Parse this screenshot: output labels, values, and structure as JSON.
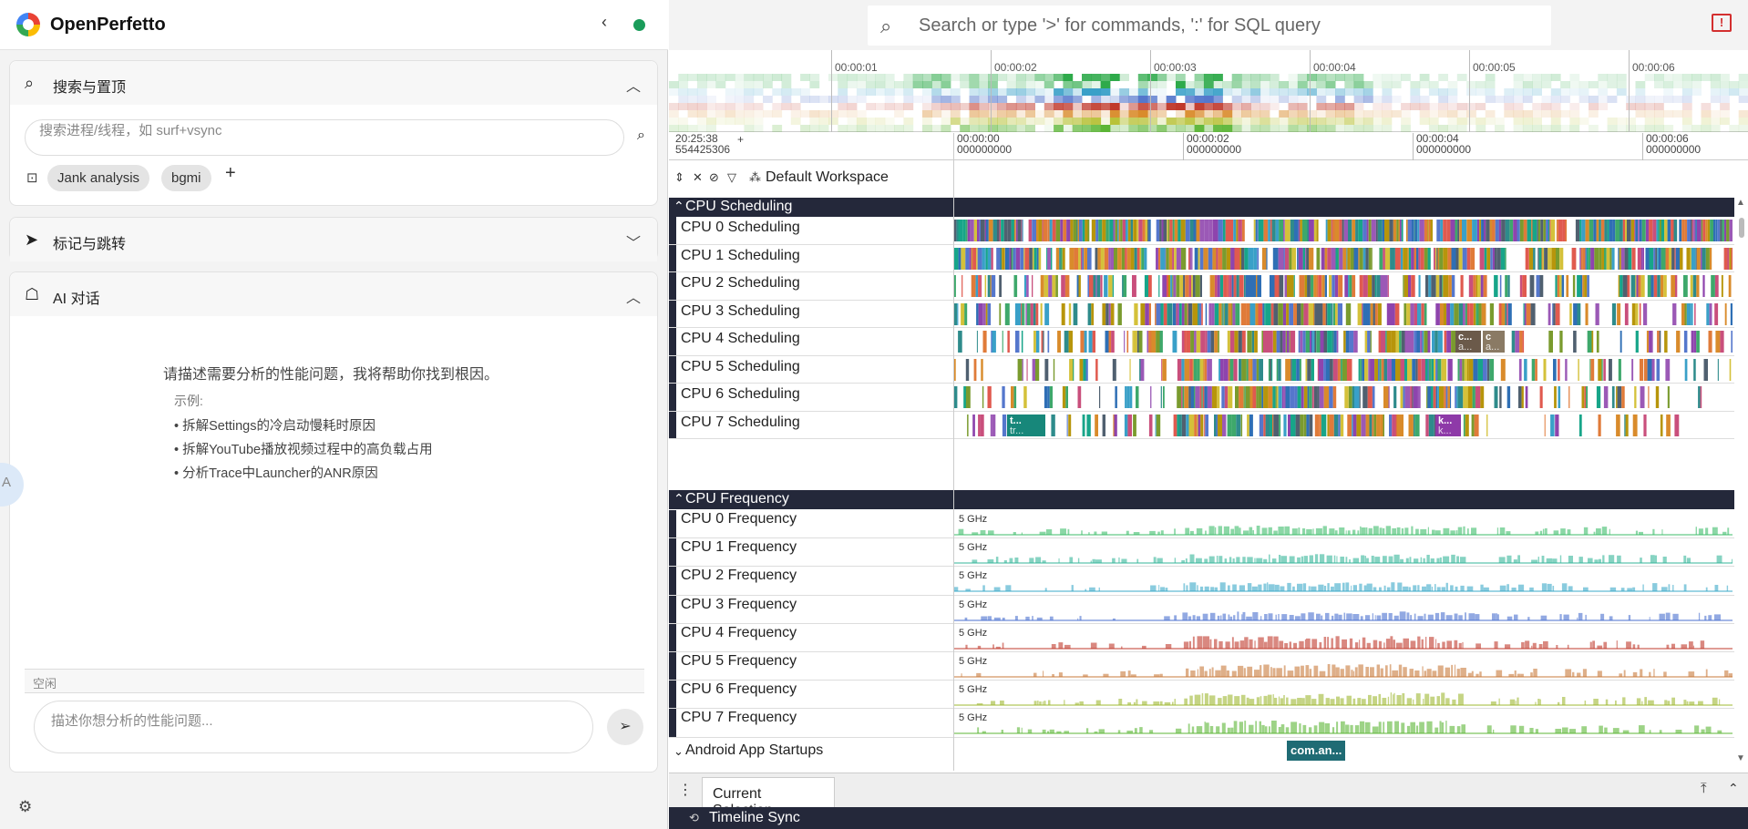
{
  "app": {
    "title": "OpenPerfetto"
  },
  "left": {
    "search_card": {
      "title": "搜索与置顶",
      "placeholder": "搜索进程/线程，如 surf+vsync",
      "chips": [
        "Jank analysis",
        "bgmi"
      ]
    },
    "mark_card": {
      "title": "标记与跳转"
    },
    "ai_card": {
      "title": "AI 对话",
      "intro": "请描述需要分析的性能问题，我将帮助你找到根因。",
      "examples_title": "示例:",
      "examples": [
        "• 拆解Settings的冷启动慢耗时原因",
        "• 拆解YouTube播放视频过程中的高负载占用",
        "• 分析Trace中Launcher的ANR原因"
      ],
      "status": "空闲",
      "input_placeholder": "描述你想分析的性能问题..."
    }
  },
  "omnibox": {
    "placeholder": "Search or type '>' for commands, ':' for SQL query"
  },
  "overview": {
    "labels": [
      "00:00:01",
      "00:00:02",
      "00:00:03",
      "00:00:04",
      "00:00:05",
      "00:00:06"
    ]
  },
  "timebar": {
    "origin": "20:25:38\n554425306",
    "plus": "+",
    "labels": [
      "00:00:00\n000000000",
      "00:00:02\n000000000",
      "00:00:04\n000000000",
      "00:00:06\n000000000"
    ]
  },
  "workspace": {
    "label": "Default Workspace"
  },
  "groups": {
    "cpu_scheduling": "CPU Scheduling",
    "cpu_frequency": "CPU Frequency",
    "android_app_startups": "Android App Startups"
  },
  "sched_tracks": [
    "CPU 0 Scheduling",
    "CPU 1 Scheduling",
    "CPU 2 Scheduling",
    "CPU 3 Scheduling",
    "CPU 4 Scheduling",
    "CPU 5 Scheduling",
    "CPU 6 Scheduling",
    "CPU 7 Scheduling"
  ],
  "freq_tracks": [
    "CPU 0 Frequency",
    "CPU 1 Frequency",
    "CPU 2 Frequency",
    "CPU 3 Frequency",
    "CPU 4 Frequency",
    "CPU 5 Frequency",
    "CPU 6 Frequency",
    "CPU 7 Frequency"
  ],
  "freq_label": "5 GHz",
  "freq_colors": [
    "#3ebc6a",
    "#35b59a",
    "#3aa9c8",
    "#4a6fcf",
    "#c0392b",
    "#c87a3a",
    "#9fb832",
    "#5bb535"
  ],
  "slice_labels": {
    "cpu4": [
      "c...",
      "c",
      "a...",
      "a..."
    ],
    "cpu7": [
      "t...",
      "tr...",
      "k...",
      "k..."
    ]
  },
  "startup_slice": "com.an...",
  "bottom": {
    "tab_current": "Current Selection",
    "sync": "Timeline Sync"
  }
}
